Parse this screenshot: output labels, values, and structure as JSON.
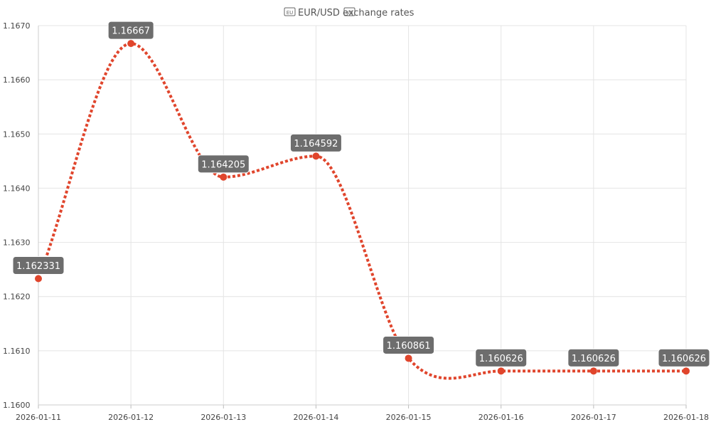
{
  "chart_data": {
    "type": "line",
    "title": "EUR/USD exchange rates",
    "title_icons": [
      "eu-flag-icon",
      "us-flag-icon"
    ],
    "categories": [
      "2026-01-11",
      "2026-01-12",
      "2026-01-13",
      "2026-01-14",
      "2026-01-15",
      "2026-01-16",
      "2026-01-17",
      "2026-01-18"
    ],
    "series": [
      {
        "values": [
          1.162331,
          1.16667,
          1.164205,
          1.164592,
          1.160861,
          1.160626,
          1.160626,
          1.160626
        ],
        "labels": [
          "1.162331",
          "1.16667",
          "1.164205",
          "1.164592",
          "1.160861",
          "1.160626",
          "1.160626",
          "1.160626"
        ],
        "color": "#e0452c",
        "line_style": "dotted",
        "smooth": true
      }
    ],
    "ylim": [
      1.16,
      1.167
    ],
    "yticks": [
      "1.1600",
      "1.1610",
      "1.1620",
      "1.1630",
      "1.1640",
      "1.1650",
      "1.1660",
      "1.1670"
    ],
    "xlabel": "",
    "ylabel": "",
    "grid": true,
    "legend": "none",
    "label_bg": "#6d6d6d",
    "grid_color": "#e4e4e4"
  }
}
